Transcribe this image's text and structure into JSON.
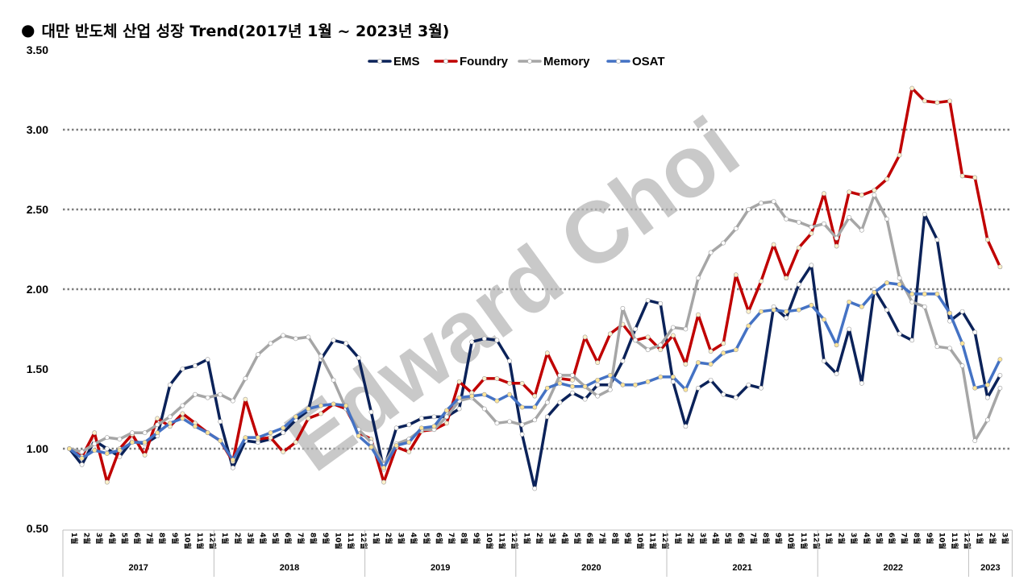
{
  "title_bullet": "●",
  "title": "대만 반도체 산업 성장 Trend(2017년 1월 ~ 2023년 3월)",
  "watermark": "Edward Choi",
  "chart_data": {
    "type": "line",
    "ylim": [
      0.5,
      3.5
    ],
    "yticks": [
      "0.50",
      "1.00",
      "1.50",
      "2.00",
      "2.50",
      "3.00",
      "3.50"
    ],
    "grid": "dotted horizontal lines at 1.00, 2.00, 2.50, 3.00",
    "legend_position": "top-center",
    "month_suffix": "월",
    "years": [
      {
        "label": "2017",
        "months": [
          "1",
          "2",
          "3",
          "4",
          "5",
          "6",
          "7",
          "8",
          "9",
          "10",
          "11",
          "12"
        ]
      },
      {
        "label": "2018",
        "months": [
          "1",
          "2",
          "3",
          "4",
          "5",
          "6",
          "7",
          "8",
          "9",
          "10",
          "11",
          "12"
        ]
      },
      {
        "label": "2019",
        "months": [
          "1",
          "2",
          "3",
          "4",
          "5",
          "6",
          "7",
          "8",
          "9",
          "10",
          "11",
          "12"
        ]
      },
      {
        "label": "2020",
        "months": [
          "1",
          "2",
          "3",
          "4",
          "5",
          "6",
          "7",
          "8",
          "9",
          "10",
          "11",
          "12"
        ]
      },
      {
        "label": "2021",
        "months": [
          "1",
          "2",
          "3",
          "4",
          "5",
          "6",
          "7",
          "8",
          "9",
          "10",
          "11",
          "12"
        ]
      },
      {
        "label": "2022",
        "months": [
          "1",
          "2",
          "3",
          "4",
          "5",
          "6",
          "7",
          "8",
          "9",
          "10",
          "11",
          "12"
        ]
      },
      {
        "label": "2023",
        "months": [
          "1",
          "2",
          "3"
        ]
      }
    ],
    "series": [
      {
        "name": "EMS",
        "color": "#0b2259",
        "values": [
          1.0,
          0.9,
          1.05,
          1.0,
          0.95,
          1.05,
          1.03,
          1.08,
          1.4,
          1.5,
          1.52,
          1.56,
          1.17,
          0.88,
          1.05,
          1.04,
          1.06,
          1.1,
          1.18,
          1.24,
          1.56,
          1.68,
          1.66,
          1.57,
          1.23,
          0.87,
          1.13,
          1.15,
          1.19,
          1.2,
          1.2,
          1.25,
          1.67,
          1.69,
          1.68,
          1.55,
          1.09,
          0.75,
          1.2,
          1.29,
          1.35,
          1.31,
          1.4,
          1.4,
          1.55,
          1.75,
          1.93,
          1.91,
          1.42,
          1.14,
          1.38,
          1.43,
          1.34,
          1.32,
          1.4,
          1.38,
          1.89,
          1.82,
          2.03,
          2.15,
          1.55,
          1.47,
          1.75,
          1.41,
          2.0,
          1.87,
          1.72,
          1.68,
          2.47,
          2.31,
          1.8,
          1.86,
          1.73,
          1.32,
          1.46
        ]
      },
      {
        "name": "Foundry",
        "color": "#c00000",
        "values": [
          1.0,
          0.95,
          1.1,
          0.79,
          1.0,
          1.09,
          0.96,
          1.19,
          1.14,
          1.22,
          1.16,
          1.1,
          1.05,
          0.92,
          1.31,
          1.06,
          1.07,
          0.98,
          1.04,
          1.19,
          1.22,
          1.28,
          1.25,
          1.1,
          1.06,
          0.79,
          1.01,
          0.98,
          1.11,
          1.12,
          1.16,
          1.42,
          1.35,
          1.44,
          1.44,
          1.41,
          1.41,
          1.33,
          1.6,
          1.44,
          1.43,
          1.7,
          1.54,
          1.72,
          1.78,
          1.68,
          1.7,
          1.62,
          1.71,
          1.53,
          1.84,
          1.61,
          1.66,
          2.09,
          1.86,
          2.05,
          2.28,
          2.07,
          2.26,
          2.35,
          2.6,
          2.27,
          2.61,
          2.59,
          2.62,
          2.69,
          2.84,
          3.26,
          3.18,
          3.17,
          3.18,
          2.71,
          2.7,
          2.31,
          2.14
        ]
      },
      {
        "name": "Memory",
        "color": "#a6a6a6",
        "values": [
          1.0,
          0.98,
          1.03,
          1.07,
          1.06,
          1.1,
          1.1,
          1.15,
          1.2,
          1.27,
          1.34,
          1.32,
          1.34,
          1.3,
          1.44,
          1.59,
          1.66,
          1.71,
          1.69,
          1.7,
          1.58,
          1.43,
          1.25,
          1.12,
          1.04,
          0.9,
          1.03,
          1.06,
          1.12,
          1.12,
          1.2,
          1.3,
          1.32,
          1.25,
          1.16,
          1.17,
          1.15,
          1.18,
          1.29,
          1.46,
          1.46,
          1.39,
          1.33,
          1.37,
          1.88,
          1.68,
          1.62,
          1.65,
          1.76,
          1.75,
          2.07,
          2.23,
          2.29,
          2.38,
          2.5,
          2.54,
          2.55,
          2.44,
          2.42,
          2.39,
          2.41,
          2.32,
          2.45,
          2.37,
          2.59,
          2.44,
          2.07,
          1.92,
          1.89,
          1.64,
          1.63,
          1.52,
          1.05,
          1.18,
          1.38
        ]
      },
      {
        "name": "OSAT",
        "color": "#4472c4",
        "values": [
          1.0,
          0.94,
          0.99,
          0.97,
          0.99,
          1.04,
          1.04,
          1.1,
          1.16,
          1.19,
          1.14,
          1.1,
          1.05,
          0.93,
          1.07,
          1.07,
          1.1,
          1.13,
          1.2,
          1.25,
          1.27,
          1.28,
          1.27,
          1.08,
          1.01,
          0.88,
          1.02,
          1.04,
          1.13,
          1.14,
          1.24,
          1.32,
          1.33,
          1.34,
          1.3,
          1.34,
          1.26,
          1.26,
          1.38,
          1.41,
          1.39,
          1.39,
          1.43,
          1.46,
          1.4,
          1.4,
          1.42,
          1.45,
          1.45,
          1.37,
          1.54,
          1.53,
          1.6,
          1.62,
          1.77,
          1.86,
          1.87,
          1.86,
          1.87,
          1.9,
          1.81,
          1.65,
          1.92,
          1.89,
          1.98,
          2.04,
          2.03,
          1.97,
          1.97,
          1.97,
          1.85,
          1.66,
          1.38,
          1.4,
          1.56
        ]
      }
    ]
  }
}
